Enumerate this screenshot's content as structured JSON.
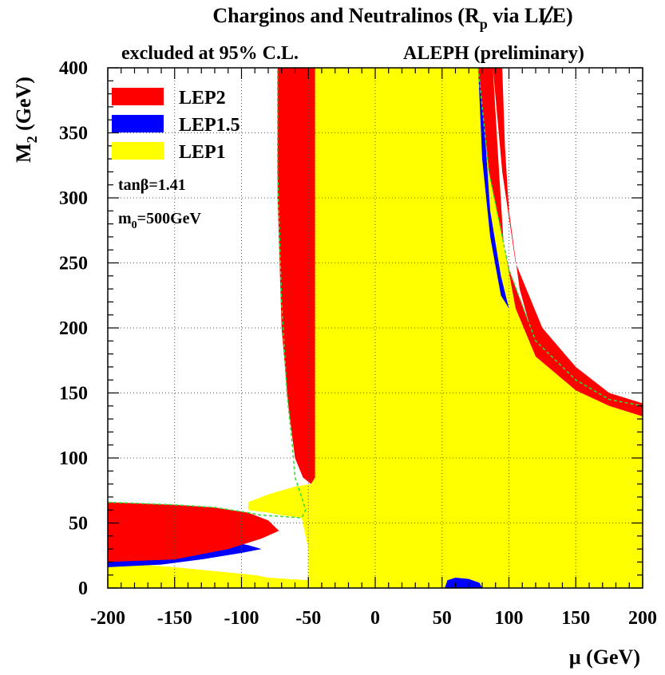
{
  "chart_data": {
    "type": "area",
    "title": "Charginos and Neutralinos (R̸p via LLE)",
    "title_parts": {
      "prefix": "Charginos and Neutralinos (",
      "r_letter": "R",
      "subscript": "p",
      "suffix": " via LLE)"
    },
    "subtitle_left": "excluded at 95% C.L.",
    "subtitle_right": "ALEPH (preliminary)",
    "xlabel": "μ (GeV)",
    "ylabel_main": "M",
    "ylabel_sub": "2",
    "ylabel_rest": " (GeV)",
    "xlim": [
      -200,
      200
    ],
    "ylim": [
      0,
      400
    ],
    "x_ticks": [
      -200,
      -150,
      -100,
      -50,
      0,
      50,
      100,
      150,
      200
    ],
    "x_tick_labels": [
      "-200",
      "-150",
      "-100",
      "-50",
      "0",
      "50",
      "100",
      "150",
      "200"
    ],
    "y_ticks": [
      0,
      50,
      100,
      150,
      200,
      250,
      300,
      350,
      400
    ],
    "y_tick_labels": [
      "0",
      "50",
      "100",
      "150",
      "200",
      "250",
      "300",
      "350",
      "400"
    ],
    "grid": true,
    "legend_placement": "top-left",
    "legend": [
      {
        "label": "LEP2",
        "color": "#ff0000"
      },
      {
        "label": "LEP1.5",
        "color": "#0000ff"
      },
      {
        "label": "LEP1",
        "color": "#ffff00"
      }
    ],
    "annotations": {
      "tanb_prefix": "tanβ=",
      "tanb_value": "1.41",
      "m0_main": "m",
      "m0_sub": "0",
      "m0_rest": "=500GeV"
    },
    "dashed_line_color": "#33dd33",
    "regions": [
      {
        "name": "LEP2",
        "color": "#ff0000",
        "points": [
          [
            -200,
            0
          ],
          [
            -200,
            66
          ],
          [
            -150,
            64
          ],
          [
            -120,
            62
          ],
          [
            -95,
            58
          ],
          [
            -80,
            52
          ],
          [
            -72,
            44
          ],
          [
            -85,
            38
          ],
          [
            -110,
            30
          ],
          [
            -150,
            22
          ],
          [
            -200,
            20
          ],
          [
            -200,
            0
          ]
        ]
      },
      {
        "name": "LEP2",
        "color": "#ff0000",
        "points": [
          [
            -73,
            400
          ],
          [
            -73,
            300
          ],
          [
            -70,
            200
          ],
          [
            -65,
            140
          ],
          [
            -60,
            100
          ],
          [
            -54,
            85
          ],
          [
            -48,
            80
          ],
          [
            -45,
            85
          ],
          [
            -45,
            120
          ],
          [
            -45,
            400
          ]
        ]
      },
      {
        "name": "LEP2",
        "color": "#ff0000",
        "points": [
          [
            77,
            400
          ],
          [
            85,
            320
          ],
          [
            100,
            245
          ],
          [
            120,
            190
          ],
          [
            150,
            160
          ],
          [
            175,
            145
          ],
          [
            200,
            138
          ],
          [
            200,
            132
          ],
          [
            175,
            140
          ],
          [
            150,
            152
          ],
          [
            120,
            178
          ],
          [
            105,
            215
          ],
          [
            96,
            265
          ],
          [
            92,
            330
          ],
          [
            88,
            400
          ]
        ]
      },
      {
        "name": "LEP2",
        "color": "#ff0000",
        "points": [
          [
            88,
            400
          ],
          [
            95,
            320
          ],
          [
            105,
            250
          ],
          [
            125,
            200
          ],
          [
            150,
            170
          ],
          [
            175,
            150
          ],
          [
            200,
            142
          ],
          [
            200,
            134
          ],
          [
            175,
            143
          ],
          [
            150,
            157
          ],
          [
            120,
            185
          ],
          [
            108,
            230
          ],
          [
            100,
            290
          ],
          [
            97,
            340
          ],
          [
            95,
            400
          ]
        ]
      },
      {
        "name": "LEP1.5",
        "color": "#0000ff",
        "points": [
          [
            -200,
            47
          ],
          [
            -170,
            44
          ],
          [
            -140,
            40
          ],
          [
            -110,
            36
          ],
          [
            -95,
            33
          ],
          [
            -85,
            30
          ],
          [
            -100,
            27
          ],
          [
            -130,
            22
          ],
          [
            -160,
            18
          ],
          [
            -200,
            16
          ]
        ]
      },
      {
        "name": "LEP1.5",
        "color": "#0000ff",
        "points": [
          [
            -54,
            400
          ],
          [
            -54,
            90
          ],
          [
            -48,
            82
          ],
          [
            -48,
            400
          ]
        ]
      },
      {
        "name": "LEP1.5",
        "color": "#0000ff",
        "points": [
          [
            77,
            400
          ],
          [
            80,
            330
          ],
          [
            86,
            270
          ],
          [
            94,
            225
          ],
          [
            100,
            215
          ],
          [
            94,
            240
          ],
          [
            86,
            290
          ],
          [
            82,
            350
          ],
          [
            80,
            400
          ]
        ]
      },
      {
        "name": "LEP1.5",
        "color": "#0000ff",
        "points": [
          [
            52,
            0
          ],
          [
            54,
            6
          ],
          [
            60,
            8
          ],
          [
            70,
            7
          ],
          [
            78,
            4
          ],
          [
            80,
            0
          ]
        ]
      },
      {
        "name": "LEP1",
        "color": "#ffff00",
        "points": [
          [
            -200,
            0
          ],
          [
            -200,
            20
          ],
          [
            -150,
            16
          ],
          [
            -110,
            12
          ],
          [
            -90,
            10
          ],
          [
            -80,
            8
          ],
          [
            -50,
            6
          ],
          [
            -50,
            0
          ]
        ]
      },
      {
        "name": "LEP1",
        "color": "#ffff00",
        "points": [
          [
            -48,
            0
          ],
          [
            -48,
            80
          ],
          [
            -60,
            78
          ],
          [
            -80,
            72
          ],
          [
            -95,
            66
          ],
          [
            -95,
            60
          ],
          [
            -80,
            58
          ],
          [
            -70,
            56
          ],
          [
            -55,
            54
          ],
          [
            -50,
            30
          ],
          [
            -50,
            0
          ]
        ]
      },
      {
        "name": "LEP1",
        "color": "#ffff00",
        "points": [
          [
            -73,
            400
          ],
          [
            -72,
            300
          ],
          [
            -66,
            200
          ],
          [
            -60,
            140
          ],
          [
            -54,
            100
          ],
          [
            -48,
            80
          ],
          [
            -48,
            0
          ],
          [
            52,
            0
          ],
          [
            54,
            6
          ],
          [
            60,
            8
          ],
          [
            70,
            7
          ],
          [
            78,
            4
          ],
          [
            80,
            0
          ],
          [
            200,
            0
          ],
          [
            200,
            132
          ],
          [
            175,
            140
          ],
          [
            150,
            152
          ],
          [
            120,
            178
          ],
          [
            105,
            215
          ],
          [
            96,
            265
          ],
          [
            92,
            330
          ],
          [
            88,
            400
          ]
        ]
      }
    ],
    "regions_note": ""
  }
}
